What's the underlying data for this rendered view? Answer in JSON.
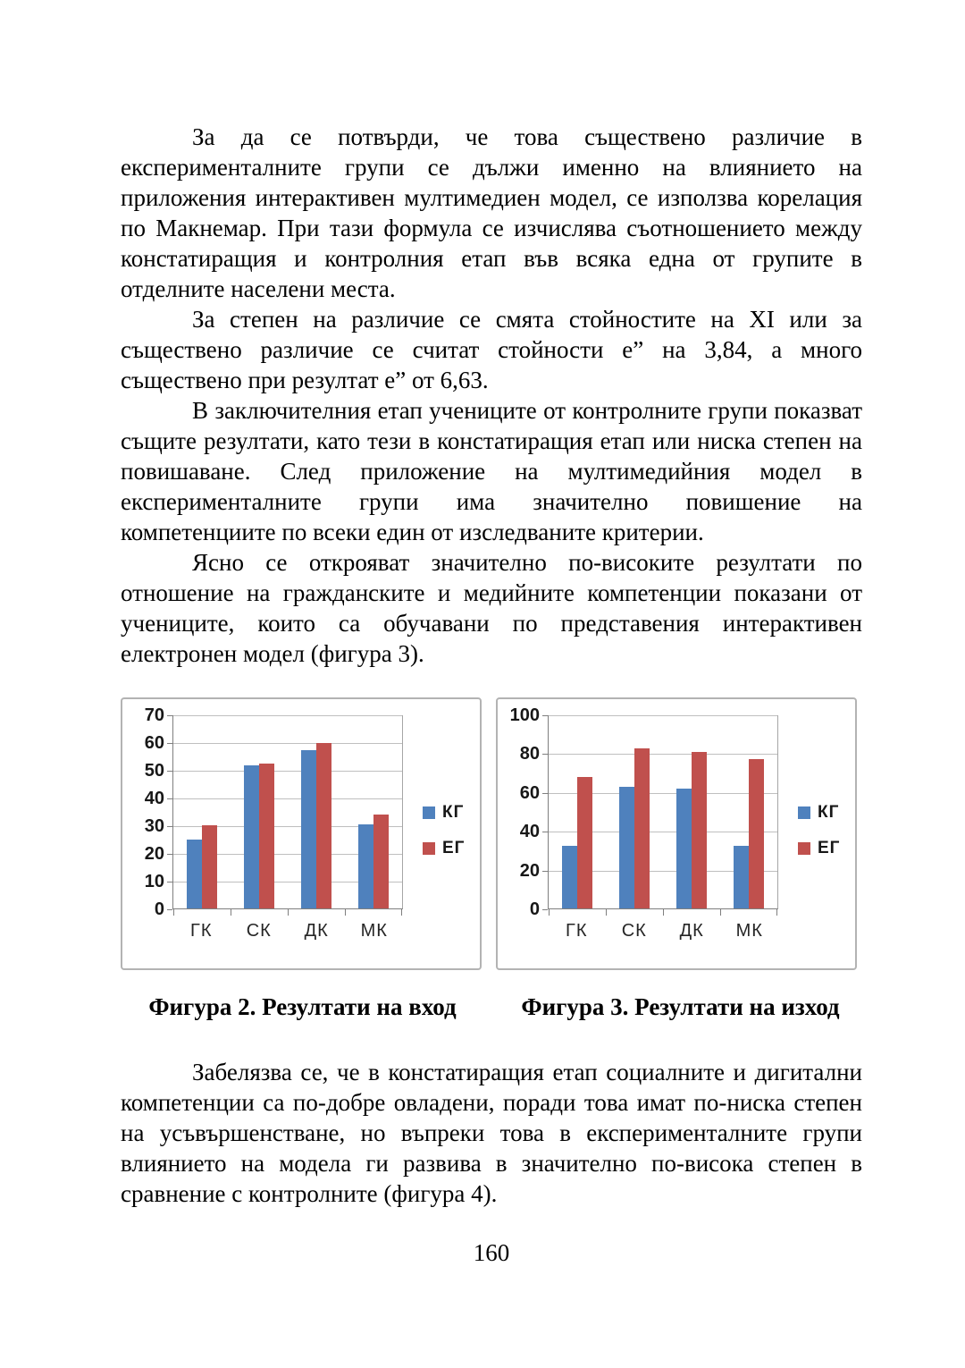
{
  "document": {
    "paragraphs": [
      "За да се потвърди, че това съществено различие в експерименталните групи се дължи именно на влиянието на приложения интерактивен мултимедиен модел, се използва корелация по Макнемар. При тази формула се изчислява съотношението между констатиращия и контролния етап във всяка една от групите в отделните населени места.",
      "За степен на различие се смята стойностите на XI или за съществено различие се считат стойности е” на 3,84, а много съществено при резултат е” от 6,63.",
      "В заключителния етап учениците от контролните групи показват същите резултати, като тези в констатиращия етап или ниска степен на повишаване. След приложение на мултимедийния модел в експерименталните групи има значително повишение на компетенциите по всеки един от изследваните критерии.",
      "Ясно се открояват значително по-високите резултати по отношение на гражданските и медийните компетенции показани от учениците, които са обучавани по представения интерактивен електронен модел (фигура 3).",
      "Забелязва се, че в констатиращия етап социалните и дигитални компетенции са по-добре овладени, поради това имат по-ниска степен на усъвършенстване, но въпреки това в експерименталните групи влиянието на модела ги развива в значително по-висока степен в сравнение с контролните (фигура 4)."
    ],
    "page_number": "160"
  },
  "chart_data": [
    {
      "type": "bar",
      "title": "Фигура 2. Резултати на вход",
      "categories": [
        "ГК",
        "СК",
        "ДК",
        "МК"
      ],
      "series": [
        {
          "name": "КГ",
          "color": "#4F81BD",
          "values": [
            25,
            52,
            57.5,
            30.5
          ]
        },
        {
          "name": "ЕГ",
          "color": "#C0504D",
          "values": [
            30,
            52.5,
            60,
            34
          ]
        }
      ],
      "ylim": [
        0,
        70
      ],
      "yticks": [
        0,
        10,
        20,
        30,
        40,
        50,
        60,
        70
      ],
      "grid": true,
      "legend_position": "right"
    },
    {
      "type": "bar",
      "title": "Фигура 3. Резултати на изход",
      "categories": [
        "ГК",
        "СК",
        "ДК",
        "МК"
      ],
      "series": [
        {
          "name": "КГ",
          "color": "#4F81BD",
          "values": [
            32.5,
            63,
            62,
            32.5
          ]
        },
        {
          "name": "ЕГ",
          "color": "#C0504D",
          "values": [
            68,
            83,
            81,
            77.5
          ]
        }
      ],
      "ylim": [
        0,
        100
      ],
      "yticks": [
        0,
        20,
        40,
        60,
        80,
        100
      ],
      "grid": true,
      "legend_position": "right"
    }
  ]
}
